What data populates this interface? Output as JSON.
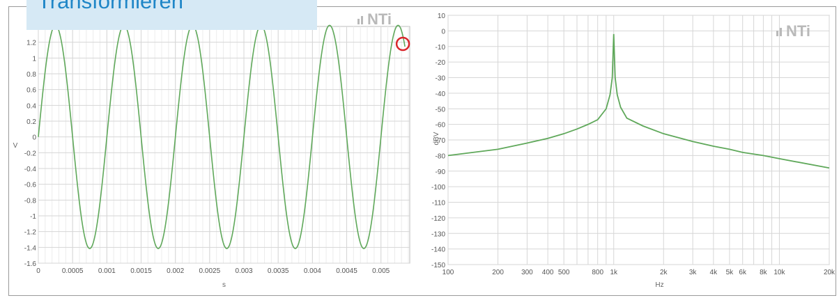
{
  "banner": {
    "text": "Transformieren"
  },
  "colors": {
    "trace": "#5fa85a",
    "grid": "#d6d6d6",
    "banner_bg": "#d6e9f5",
    "banner_text": "#1f86c7",
    "marker": "#d9262b",
    "logo": "#b9b9b9"
  },
  "logo_text": "NTi",
  "chart_data": [
    {
      "type": "line",
      "ylabel": "V",
      "xlabel": "s",
      "xlim": [
        0,
        0.00542
      ],
      "ylim": [
        -1.6,
        1.4
      ],
      "grid": true,
      "x_ticks": [
        "0",
        "0.0005",
        "0.001",
        "0.0015",
        "0.002",
        "0.0025",
        "0.003",
        "0.0035",
        "0.004",
        "0.0045",
        "0.005"
      ],
      "x_tick_values": [
        0,
        0.0005,
        0.001,
        0.0015,
        0.002,
        0.0025,
        0.003,
        0.0035,
        0.004,
        0.0045,
        0.005
      ],
      "y_ticks": [
        "1.2",
        "1",
        "0.8",
        "0.6",
        "0.4",
        "0.2",
        "0",
        "-0.2",
        "-0.4",
        "-0.6",
        "-0.8",
        "-1",
        "-1.2",
        "-1.4",
        "-1.6"
      ],
      "y_tick_values": [
        1.2,
        1,
        0.8,
        0.6,
        0.4,
        0.2,
        0,
        -0.2,
        -0.4,
        -0.6,
        -0.8,
        -1,
        -1.2,
        -1.4,
        -1.6
      ],
      "series": [
        {
          "signal": "sine",
          "amplitude": 1.414,
          "frequency_hz": 1000,
          "phase_start": "zero crossing rising",
          "x_end": 0.00535,
          "end_marker": "red circle"
        }
      ]
    },
    {
      "type": "line",
      "ylabel": "dBV",
      "xlabel": "Hz",
      "x_scale": "log",
      "xlim": [
        100,
        20000
      ],
      "ylim": [
        -150,
        10
      ],
      "grid": true,
      "x_ticks": [
        "100",
        "200",
        "300",
        "400",
        "500",
        "800",
        "1k",
        "2k",
        "3k",
        "4k",
        "5k",
        "6k",
        "8k",
        "10k",
        "20k"
      ],
      "x_tick_values": [
        100,
        200,
        300,
        400,
        500,
        800,
        1000,
        2000,
        3000,
        4000,
        5000,
        6000,
        8000,
        10000,
        20000
      ],
      "y_ticks": [
        "10",
        "0",
        "-10",
        "-20",
        "-30",
        "-40",
        "-50",
        "-60",
        "-70",
        "-80",
        "-90",
        "-100",
        "-110",
        "-120",
        "-130",
        "-140",
        "-150"
      ],
      "y_tick_values": [
        10,
        0,
        -10,
        -20,
        -30,
        -40,
        -50,
        -60,
        -70,
        -80,
        -90,
        -100,
        -110,
        -120,
        -130,
        -140,
        -150
      ],
      "series": [
        {
          "x": [
            100,
            200,
            300,
            400,
            500,
            600,
            700,
            800,
            900,
            950,
            980,
            1000,
            1020,
            1050,
            1100,
            1200,
            1500,
            2000,
            3000,
            4000,
            5000,
            6000,
            8000,
            10000,
            20000
          ],
          "values": [
            -80,
            -76,
            -72,
            -69,
            -66,
            -63,
            -60,
            -57,
            -50,
            -41,
            -30,
            -2,
            -30,
            -41,
            -49,
            -56,
            -61,
            -66,
            -71,
            -74,
            -76,
            -78,
            -80,
            -82,
            -88
          ]
        }
      ]
    }
  ]
}
